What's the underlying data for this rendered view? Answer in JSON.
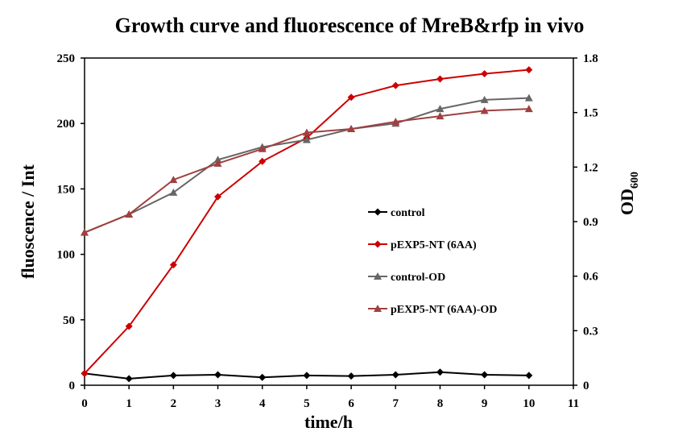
{
  "chart_data": {
    "type": "line",
    "title": "Growth curve and fluorescence of MreB&rfp in vivo",
    "xlabel": "time/h",
    "ylabel": "fluoscence / Int",
    "y2label": {
      "main": "OD",
      "sub": "600"
    },
    "x": [
      0,
      1,
      2,
      3,
      4,
      5,
      6,
      7,
      8,
      9,
      10
    ],
    "xlim": [
      0,
      11
    ],
    "xticks": [
      "0",
      "1",
      "2",
      "3",
      "4",
      "5",
      "6",
      "7",
      "8",
      "9",
      "10",
      "11"
    ],
    "ylim": [
      0,
      250
    ],
    "yticks": [
      "0",
      "50",
      "100",
      "150",
      "200",
      "250"
    ],
    "y2lim": [
      0,
      1.8
    ],
    "y2ticks": [
      "0",
      "0.3",
      "0.6",
      "0.9",
      "1.2",
      "1.5",
      "1.8"
    ],
    "grid": false,
    "legend_position": "center-right",
    "series": [
      {
        "name": "control",
        "axis": "left",
        "marker": "diamond",
        "color": "#000000",
        "values": [
          9,
          5,
          7.5,
          8,
          6,
          7.5,
          7,
          8,
          10,
          8,
          7.5
        ]
      },
      {
        "name": "pEXP5-NT (6AA)",
        "axis": "left",
        "marker": "diamond",
        "color": "#cc0000",
        "values": [
          9,
          45,
          92,
          144,
          171,
          189,
          220,
          229,
          234,
          238,
          241
        ]
      },
      {
        "name": "control-OD",
        "axis": "right",
        "marker": "triangle",
        "color": "#666666",
        "values": [
          0.84,
          0.94,
          1.06,
          1.24,
          1.31,
          1.35,
          1.41,
          1.44,
          1.52,
          1.57,
          1.58
        ]
      },
      {
        "name": "pEXP5-NT (6AA)-OD",
        "axis": "right",
        "marker": "triangle",
        "color": "#a04040",
        "values": [
          0.84,
          0.94,
          1.13,
          1.22,
          1.3,
          1.39,
          1.41,
          1.45,
          1.48,
          1.51,
          1.52
        ]
      }
    ]
  }
}
